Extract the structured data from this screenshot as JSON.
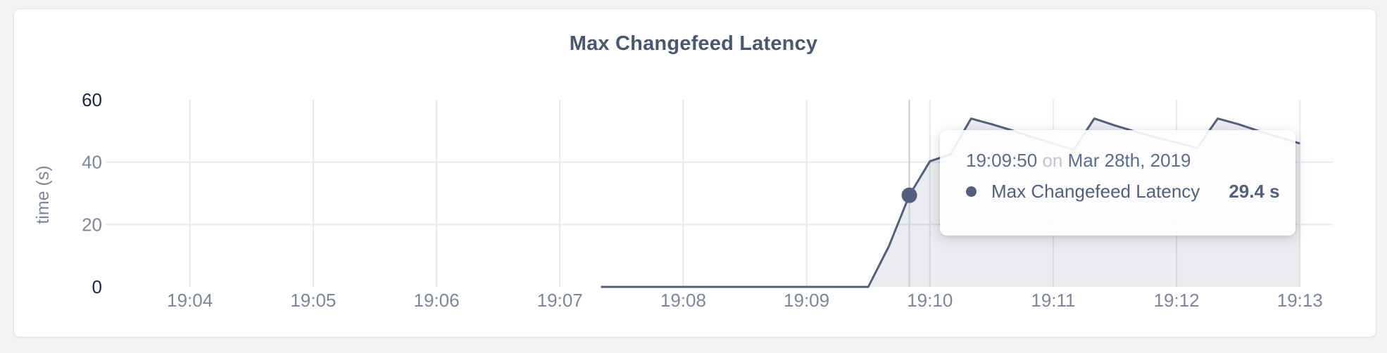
{
  "page": {
    "background_color": "#f3f3f4"
  },
  "card": {
    "background_color": "#ffffff",
    "border_color": "#e3e4e7"
  },
  "chart_data": {
    "type": "area",
    "title": "Max Changefeed Latency",
    "title_color": "#475872",
    "xlabel": "",
    "ylabel": "time (s)",
    "xlim": [
      "19:03:19",
      "19:13:16"
    ],
    "ylim": [
      0,
      60
    ],
    "grid": true,
    "legend": "none",
    "x_ticks": [
      "19:04",
      "19:05",
      "19:06",
      "19:07",
      "19:08",
      "19:09",
      "19:10",
      "19:11",
      "19:12",
      "19:13"
    ],
    "y_ticks": [
      {
        "v": 0,
        "emphasized": true
      },
      {
        "v": 20,
        "emphasized": false
      },
      {
        "v": 40,
        "emphasized": false
      },
      {
        "v": 60,
        "emphasized": true
      }
    ],
    "series": [
      {
        "name": "Max Changefeed Latency",
        "color": "#535f7f",
        "fill_color": "rgba(83,95,127,0.12)",
        "points": [
          [
            "19:07:20",
            0
          ],
          [
            "19:07:30",
            0
          ],
          [
            "19:07:40",
            0
          ],
          [
            "19:07:50",
            0
          ],
          [
            "19:08:00",
            0
          ],
          [
            "19:08:10",
            0
          ],
          [
            "19:08:20",
            0
          ],
          [
            "19:08:30",
            0
          ],
          [
            "19:08:40",
            0
          ],
          [
            "19:08:50",
            0
          ],
          [
            "19:09:00",
            0
          ],
          [
            "19:09:10",
            0
          ],
          [
            "19:09:20",
            0
          ],
          [
            "19:09:30",
            0
          ],
          [
            "19:09:40",
            13
          ],
          [
            "19:09:50",
            29.4
          ],
          [
            "19:10:00",
            40.3
          ],
          [
            "19:10:10",
            42.5
          ],
          [
            "19:10:20",
            54
          ],
          [
            "19:10:30",
            52.2
          ],
          [
            "19:10:40",
            50.2
          ],
          [
            "19:10:50",
            48
          ],
          [
            "19:11:00",
            46
          ],
          [
            "19:11:10",
            44
          ],
          [
            "19:11:20",
            54
          ],
          [
            "19:11:30",
            51.8
          ],
          [
            "19:11:40",
            49.8
          ],
          [
            "19:11:50",
            48
          ],
          [
            "19:12:00",
            46.3
          ],
          [
            "19:12:10",
            44.5
          ],
          [
            "19:12:20",
            54
          ],
          [
            "19:12:30",
            52.2
          ],
          [
            "19:12:40",
            50
          ],
          [
            "19:12:50",
            48
          ],
          [
            "19:13:00",
            46
          ]
        ]
      }
    ],
    "colors": {
      "gridline": "#e9e9ec",
      "tick_label": "#7d8799",
      "tick_label_emphasized": "#1b2644",
      "axis_title": "#7d8799",
      "crosshair": "#c9cbd0"
    }
  },
  "tooltip": {
    "time": "19:09:50",
    "conjunction": "on",
    "date": "Mar 28th, 2019",
    "series_label": "Max Changefeed Latency",
    "value": "29.4 s",
    "hover_point": {
      "time": "19:09:50",
      "value": 29.4
    },
    "colors": {
      "time_date": "#5b6d8d",
      "conjunction": "#c3c6cc",
      "series_text": "#50607f",
      "bullet": "#535f7f"
    }
  }
}
